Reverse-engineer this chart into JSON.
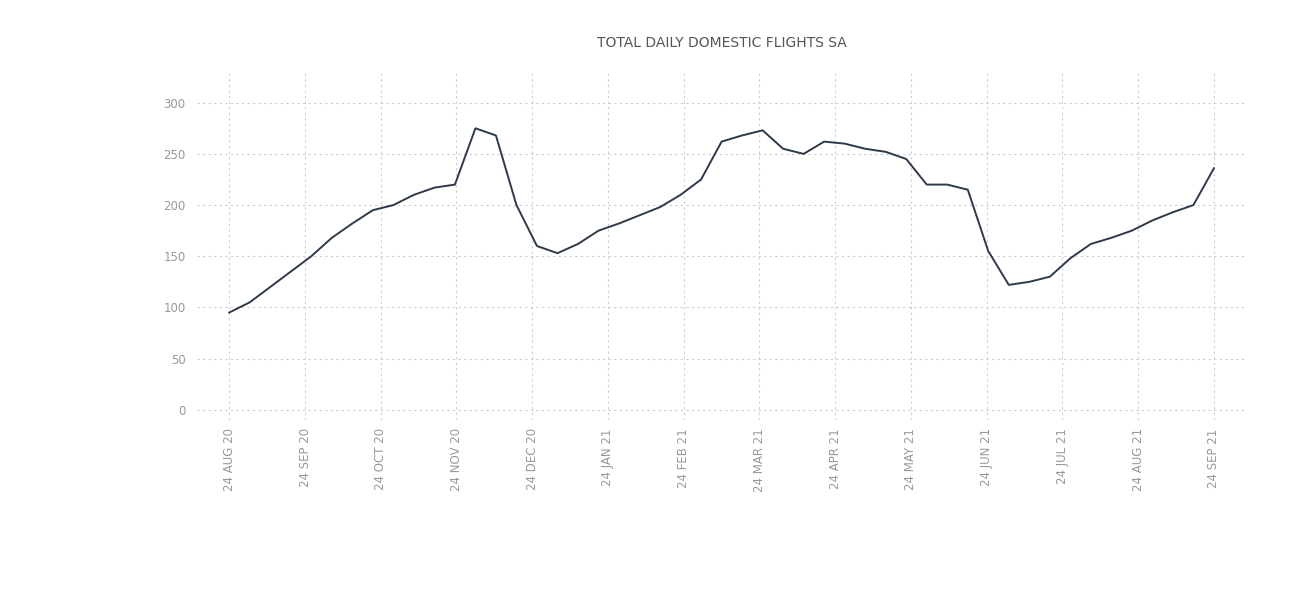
{
  "title": "TOTAL DAILY DOMESTIC FLIGHTS SA",
  "title_fontsize": 10,
  "title_color": "#555555",
  "line_color": "#2d3a4a",
  "line_width": 1.4,
  "background_color": "#ffffff",
  "grid_color": "#cccccc",
  "tick_color": "#999999",
  "tick_fontsize": 8.5,
  "ylim": [
    -10,
    330
  ],
  "yticks": [
    0,
    50,
    100,
    150,
    200,
    250,
    300
  ],
  "x_labels": [
    "24 AUG 20",
    "24 SEP 20",
    "24 OCT 20",
    "24 NOV 20",
    "24 DEC 20",
    "24 JAN 21",
    "24 FEB 21",
    "24 MAR 21",
    "24 APR 21",
    "24 MAY 21",
    "24 JUN 21",
    "24 JUL 21",
    "24 AUG 21",
    "24 SEP 21"
  ],
  "y_values": [
    95,
    105,
    120,
    135,
    150,
    168,
    182,
    195,
    200,
    210,
    217,
    220,
    275,
    268,
    200,
    160,
    153,
    162,
    175,
    182,
    190,
    198,
    210,
    225,
    262,
    268,
    273,
    255,
    250,
    262,
    260,
    255,
    252,
    245,
    220,
    220,
    215,
    155,
    122,
    125,
    130,
    148,
    162,
    168,
    175,
    185,
    193,
    200,
    236
  ],
  "x_tick_positions": [
    0,
    3.5,
    7,
    10.5,
    14,
    17.5,
    21,
    24.5,
    28,
    31.5,
    35,
    38.5,
    42,
    45.5
  ]
}
